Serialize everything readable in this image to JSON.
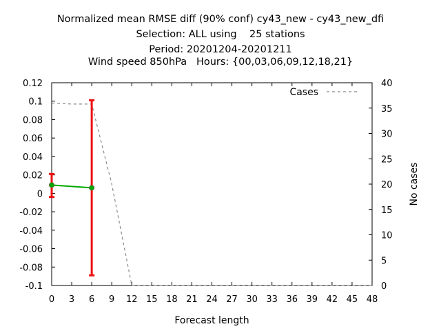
{
  "chart_data": {
    "type": "line",
    "title_lines": [
      "Normalized mean RMSE diff (90% conf) cy43_new - cy43_new_dfi",
      "Selection: ALL using    25 stations",
      "Period: 20201204-20201211",
      "Wind speed 850hPa   Hours: {00,03,06,09,12,18,21}"
    ],
    "xlabel": "Forecast length",
    "ylabel": "",
    "y2label": "No cases",
    "xlim": [
      0,
      48
    ],
    "ylim": [
      -0.1,
      0.12
    ],
    "y2lim": [
      0,
      40
    ],
    "xticks": [
      "0",
      "3",
      "6",
      "9",
      "12",
      "15",
      "18",
      "21",
      "24",
      "27",
      "30",
      "33",
      "36",
      "39",
      "42",
      "45",
      "48"
    ],
    "yticks": [
      "-0.1",
      "-0.08",
      "-0.06",
      "-0.04",
      "-0.02",
      "0",
      "0.02",
      "0.04",
      "0.06",
      "0.08",
      "0.1",
      "0.12"
    ],
    "y2ticks": [
      "0",
      "5",
      "10",
      "15",
      "20",
      "25",
      "30",
      "35",
      "40"
    ],
    "grid": false,
    "legend_position": "top-right",
    "legend": [
      "Cases"
    ],
    "series": [
      {
        "role": "diff",
        "color": "#00aa00",
        "points": [
          {
            "x": 0,
            "y": 0.009,
            "ci": [
              -0.004,
              0.021
            ]
          },
          {
            "x": 6,
            "y": 0.006,
            "ci": [
              -0.089,
              0.101
            ]
          }
        ],
        "errorbar_color": "#ee1111"
      },
      {
        "name": "Cases",
        "axis": "y2",
        "color": "#888888",
        "dashed": true,
        "x": [
          0,
          3,
          6,
          9,
          12,
          15,
          18,
          21,
          24,
          27,
          30,
          33,
          36,
          39,
          42,
          45,
          48
        ],
        "y": [
          36,
          35.8,
          35.8,
          20,
          0,
          0,
          0,
          0,
          0,
          0,
          0,
          0,
          0,
          0,
          0,
          0,
          0
        ]
      }
    ]
  }
}
